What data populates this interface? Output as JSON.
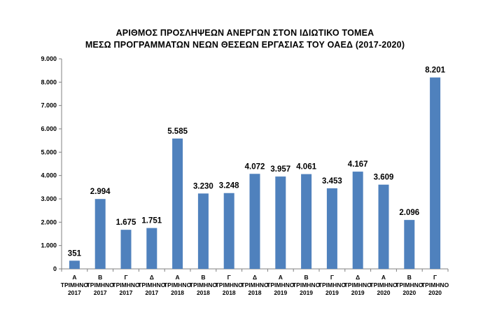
{
  "chart_data": {
    "type": "bar",
    "title": "ΑΡΙΘΜΟΣ ΠΡΟΣΛΗΨΕΩΝ ΑΝΕΡΓΩΝ ΣΤΟΝ ΙΔΙΩΤΙΚΟ ΤΟΜΕΑ",
    "subtitle": "ΜΕΣΩ ΠΡΟΓΡΑΜΜΑΤΩΝ ΝΕΩΝ ΘΕΣΕΩΝ ΕΡΓΑΣΙΑΣ ΤΟΥ ΟΑΕΔ (2017-2020)",
    "xlabel": "",
    "ylabel": "",
    "ylim": [
      0,
      9000
    ],
    "grid": false,
    "bar_color": "#4F81BD",
    "yticks": [
      "0",
      "1.000",
      "2.000",
      "3.000",
      "4.000",
      "5.000",
      "6.000",
      "7.000",
      "8.000",
      "9.000"
    ],
    "categories": [
      [
        "Α",
        "ΤΡΙΜΗΝΟ",
        "2017"
      ],
      [
        "Β",
        "ΤΡΙΜΗΝΟ",
        "2017"
      ],
      [
        "Γ",
        "ΤΡΙΜΗΝΟ",
        "2017"
      ],
      [
        "Δ",
        "ΤΡΙΜΗΝΟ",
        "2017"
      ],
      [
        "Α",
        "ΤΡΙΜΗΝΟ",
        "2018"
      ],
      [
        "Β",
        "ΤΡΙΜΗΝΟ",
        "2018"
      ],
      [
        "Γ",
        "ΤΡΙΜΗΝΟ",
        "2018"
      ],
      [
        "Δ",
        "ΤΡΙΜΗΝΟ",
        "2018"
      ],
      [
        "Α",
        "ΤΡΙΜΗΝΟ",
        "2019"
      ],
      [
        "Β",
        "ΤΡΙΜΗΝΟ",
        "2019"
      ],
      [
        "Γ",
        "ΤΡΙΜΗΝΟ",
        "2019"
      ],
      [
        "Δ",
        "ΤΡΙΜΗΝΟ",
        "2019"
      ],
      [
        "Α",
        "ΤΡΙΜΗΝΟ",
        "2020"
      ],
      [
        "Β",
        "ΤΡΙΜΗΝΟ",
        "2020"
      ],
      [
        "Γ",
        "ΤΡΙΜΗΝΟ",
        "2020"
      ]
    ],
    "values": [
      351,
      2994,
      1675,
      1751,
      5585,
      3230,
      3248,
      4072,
      3957,
      4061,
      3453,
      4167,
      3609,
      2096,
      8201
    ],
    "data_labels": [
      "351",
      "2.994",
      "1.675",
      "1.751",
      "5.585",
      "3.230",
      "3.248",
      "4.072",
      "3.957",
      "4.061",
      "3.453",
      "4.167",
      "3.609",
      "2.096",
      "8.201"
    ]
  }
}
